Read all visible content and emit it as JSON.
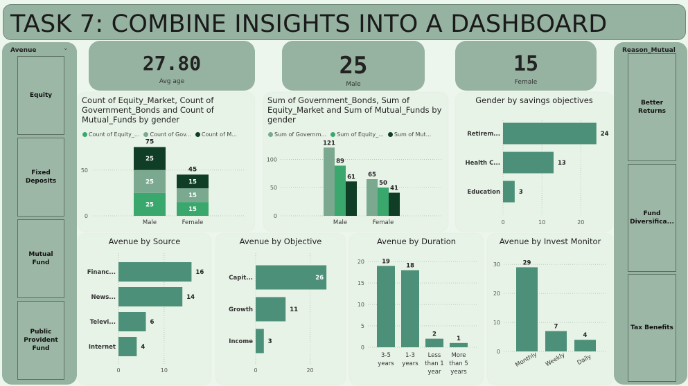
{
  "title": "TASK 7: COMBINE INSIGHTS INTO A DASHBOARD",
  "colors": {
    "dark": "#0f3d26",
    "mid": "#4a8f74",
    "light": "#7aa98f",
    "bright": "#3aa76d",
    "bar": "#4c9079"
  },
  "left_slicer": {
    "header": "Avenue",
    "items": [
      "Equity",
      "Fixed Deposits",
      "Mutual Fund",
      "Public Provident Fund"
    ]
  },
  "right_slicer": {
    "header": "Reason_Mutual",
    "items": [
      "Better Returns",
      "Fund Diversifica...",
      "Tax Benefits"
    ]
  },
  "kpis": [
    {
      "value": "27.80",
      "label": "Avg age"
    },
    {
      "value": "25",
      "label": "Male"
    },
    {
      "value": "15",
      "label": "Female"
    }
  ],
  "charts": {
    "count_by_gender": {
      "title": "Count of Equity_Market, Count of Government_Bonds and Count of Mutual_Funds by gender",
      "legend": [
        "Count of Equity_...",
        "Count of Gov...",
        "Count of M..."
      ]
    },
    "sum_by_gender": {
      "title": "Sum of Government_Bonds, Sum of Equity_Market and Sum of Mutual_Funds by gender",
      "legend": [
        "Sum of Governm...",
        "Sum of Equity_...",
        "Sum of Mut..."
      ]
    },
    "savings": {
      "title": "Gender by savings objectives"
    },
    "source": {
      "title": "Avenue by Source"
    },
    "objective": {
      "title": "Avenue by Objective"
    },
    "duration": {
      "title": "Avenue by Duration"
    },
    "monitor": {
      "title": "Avenue by Invest Monitor"
    }
  },
  "chart_data": [
    {
      "id": "count_by_gender",
      "type": "bar",
      "stacked": true,
      "categories": [
        "Male",
        "Female"
      ],
      "series": [
        {
          "name": "Count of Equity_...",
          "values": [
            25,
            15
          ]
        },
        {
          "name": "Count of Gov...",
          "values": [
            25,
            15
          ]
        },
        {
          "name": "Count of M...",
          "values": [
            25,
            15
          ]
        }
      ],
      "totals": [
        75,
        45
      ],
      "yticks": [
        0,
        50
      ],
      "ylim": [
        0,
        80
      ]
    },
    {
      "id": "sum_by_gender",
      "type": "bar",
      "categories": [
        "Male",
        "Female"
      ],
      "series": [
        {
          "name": "Sum of Governm...",
          "values": [
            121,
            65
          ]
        },
        {
          "name": "Sum of Equity_...",
          "values": [
            89,
            50
          ]
        },
        {
          "name": "Sum of Mut...",
          "values": [
            61,
            41
          ]
        }
      ],
      "yticks": [
        0,
        50,
        100
      ],
      "ylim": [
        0,
        130
      ]
    },
    {
      "id": "savings",
      "type": "bar",
      "orientation": "horizontal",
      "categories": [
        "Retirem...",
        "Health C...",
        "Education"
      ],
      "values": [
        24,
        13,
        3
      ],
      "xticks": [
        0,
        10,
        20
      ],
      "xlim": [
        0,
        26
      ]
    },
    {
      "id": "source",
      "type": "bar",
      "orientation": "horizontal",
      "categories": [
        "Financ...",
        "News...",
        "Televi...",
        "Internet"
      ],
      "values": [
        16,
        14,
        6,
        4
      ],
      "xticks": [
        0,
        10
      ],
      "xlim": [
        0,
        17
      ]
    },
    {
      "id": "objective",
      "type": "bar",
      "orientation": "horizontal",
      "categories": [
        "Capit...",
        "Growth",
        "Income"
      ],
      "values": [
        26,
        11,
        3
      ],
      "xticks": [
        0,
        20
      ],
      "xlim": [
        0,
        28
      ]
    },
    {
      "id": "duration",
      "type": "bar",
      "categories": [
        "3-5 years",
        "1-3 years",
        "Less than 1 year",
        "More than 5 years"
      ],
      "values": [
        19,
        18,
        2,
        1
      ],
      "yticks": [
        0,
        5,
        10,
        15,
        20
      ],
      "ylim": [
        0,
        21
      ]
    },
    {
      "id": "monitor",
      "type": "bar",
      "categories": [
        "Monthly",
        "Weekly",
        "Daily"
      ],
      "values": [
        29,
        7,
        4
      ],
      "yticks": [
        0,
        10,
        20,
        30
      ],
      "ylim": [
        0,
        31
      ]
    }
  ]
}
